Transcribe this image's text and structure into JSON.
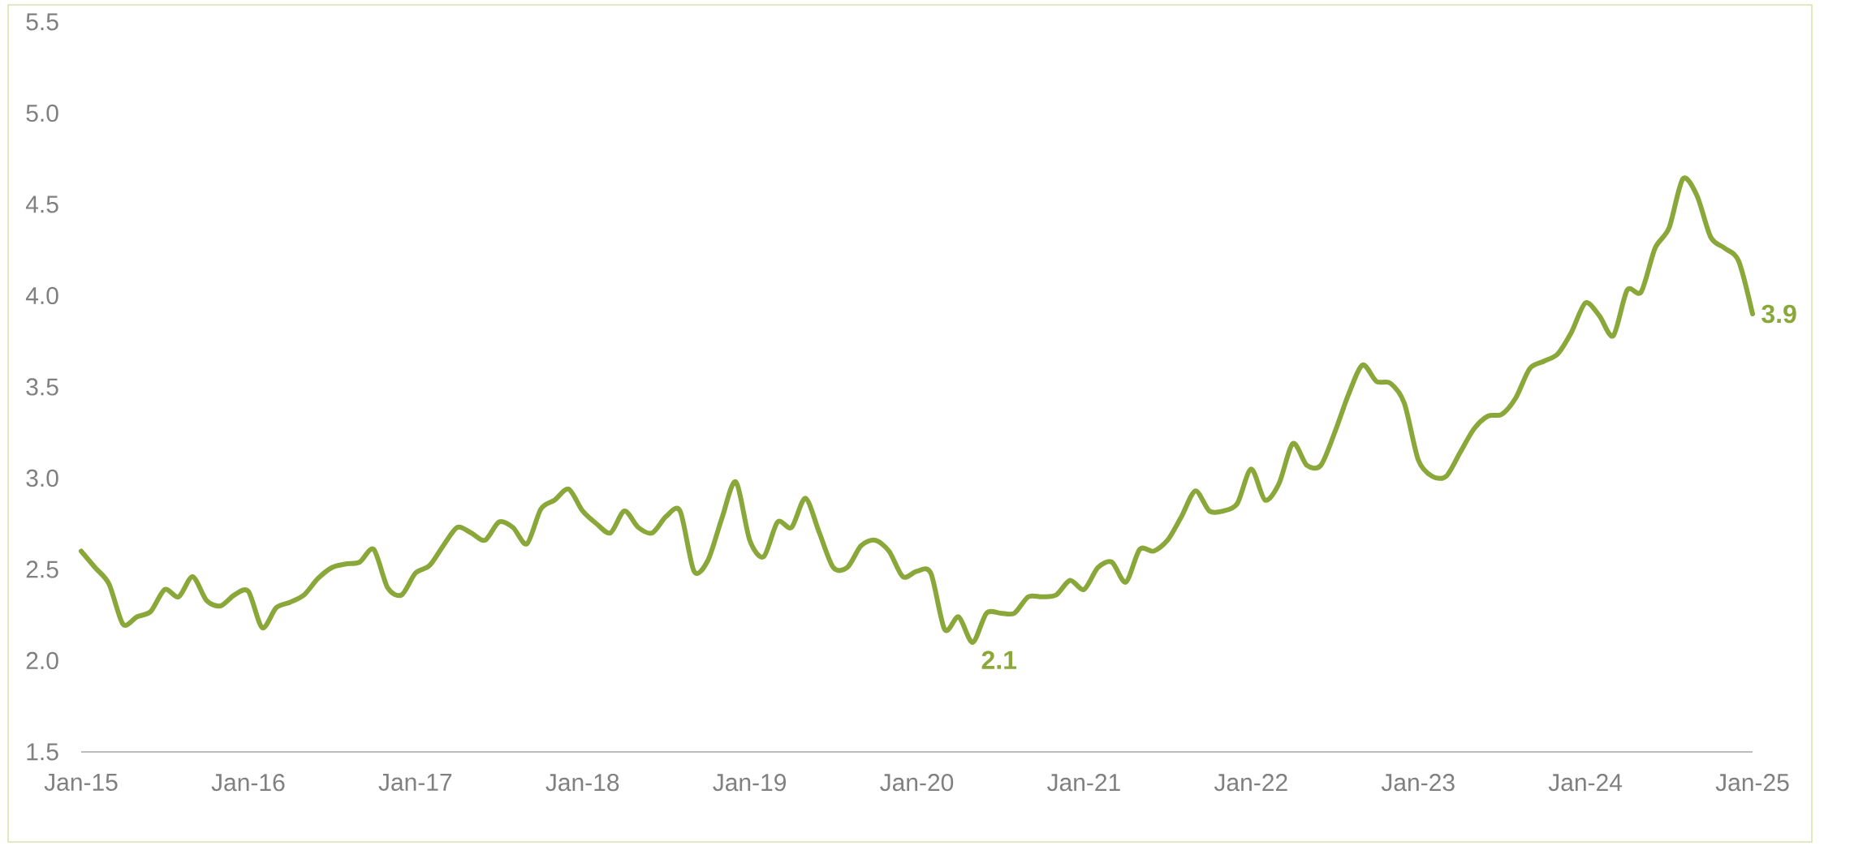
{
  "chart_data": {
    "type": "line",
    "x": [
      "2015-01",
      "2015-02",
      "2015-03",
      "2015-04",
      "2015-05",
      "2015-06",
      "2015-07",
      "2015-08",
      "2015-09",
      "2015-10",
      "2015-11",
      "2015-12",
      "2016-01",
      "2016-02",
      "2016-03",
      "2016-04",
      "2016-05",
      "2016-06",
      "2016-07",
      "2016-08",
      "2016-09",
      "2016-10",
      "2016-11",
      "2016-12",
      "2017-01",
      "2017-02",
      "2017-03",
      "2017-04",
      "2017-05",
      "2017-06",
      "2017-07",
      "2017-08",
      "2017-09",
      "2017-10",
      "2017-11",
      "2017-12",
      "2018-01",
      "2018-02",
      "2018-03",
      "2018-04",
      "2018-05",
      "2018-06",
      "2018-07",
      "2018-08",
      "2018-09",
      "2018-10",
      "2018-11",
      "2018-12",
      "2019-01",
      "2019-02",
      "2019-03",
      "2019-04",
      "2019-05",
      "2019-06",
      "2019-07",
      "2019-08",
      "2019-09",
      "2019-10",
      "2019-11",
      "2019-12",
      "2020-01",
      "2020-02",
      "2020-03",
      "2020-04",
      "2020-05",
      "2020-06",
      "2020-07",
      "2020-08",
      "2020-09",
      "2020-10",
      "2020-11",
      "2020-12",
      "2021-01",
      "2021-02",
      "2021-03",
      "2021-04",
      "2021-05",
      "2021-06",
      "2021-07",
      "2021-08",
      "2021-09",
      "2021-10",
      "2021-11",
      "2021-12",
      "2022-01",
      "2022-02",
      "2022-03",
      "2022-04",
      "2022-05",
      "2022-06",
      "2022-07",
      "2022-08",
      "2022-09",
      "2022-10",
      "2022-11",
      "2022-12",
      "2023-01",
      "2023-02",
      "2023-03",
      "2023-04",
      "2023-05",
      "2023-06",
      "2023-07",
      "2023-08",
      "2023-09",
      "2023-10",
      "2023-11",
      "2023-12",
      "2024-01",
      "2024-02",
      "2024-03",
      "2024-04",
      "2024-05",
      "2024-06",
      "2024-07",
      "2024-08",
      "2024-09",
      "2024-10",
      "2024-11",
      "2024-12",
      "2025-01"
    ],
    "values": [
      2.6,
      2.51,
      2.42,
      2.2,
      2.24,
      2.27,
      2.39,
      2.35,
      2.46,
      2.33,
      2.3,
      2.36,
      2.38,
      2.18,
      2.29,
      2.32,
      2.36,
      2.45,
      2.51,
      2.53,
      2.54,
      2.61,
      2.4,
      2.36,
      2.48,
      2.52,
      2.63,
      2.73,
      2.7,
      2.66,
      2.76,
      2.73,
      2.64,
      2.83,
      2.88,
      2.94,
      2.82,
      2.75,
      2.7,
      2.82,
      2.73,
      2.7,
      2.79,
      2.82,
      2.49,
      2.55,
      2.78,
      2.98,
      2.66,
      2.57,
      2.76,
      2.73,
      2.89,
      2.7,
      2.51,
      2.51,
      2.63,
      2.66,
      2.6,
      2.46,
      2.49,
      2.48,
      2.17,
      2.24,
      2.1,
      2.26,
      2.26,
      2.26,
      2.35,
      2.35,
      2.36,
      2.44,
      2.39,
      2.51,
      2.54,
      2.43,
      2.61,
      2.6,
      2.66,
      2.79,
      2.93,
      2.82,
      2.82,
      2.86,
      3.05,
      2.88,
      2.97,
      3.19,
      3.07,
      3.07,
      3.25,
      3.46,
      3.62,
      3.53,
      3.52,
      3.41,
      3.1,
      3.01,
      3.01,
      3.14,
      3.27,
      3.34,
      3.35,
      3.44,
      3.6,
      3.64,
      3.68,
      3.8,
      3.96,
      3.89,
      3.78,
      4.03,
      4.02,
      4.26,
      4.37,
      4.64,
      4.55,
      4.32,
      4.26,
      4.19,
      3.9
    ],
    "value_labels": [
      null,
      null,
      null,
      null,
      null,
      null,
      null,
      null,
      null,
      null,
      null,
      null,
      null,
      null,
      null,
      null,
      null,
      null,
      null,
      null,
      null,
      null,
      null,
      null,
      null,
      null,
      null,
      null,
      null,
      null,
      null,
      null,
      null,
      null,
      null,
      null,
      null,
      null,
      null,
      null,
      null,
      null,
      null,
      null,
      null,
      null,
      null,
      null,
      null,
      null,
      null,
      null,
      null,
      null,
      null,
      null,
      null,
      null,
      null,
      null,
      null,
      null,
      null,
      null,
      "2.1",
      null,
      null,
      null,
      null,
      null,
      null,
      null,
      null,
      null,
      null,
      null,
      null,
      null,
      null,
      null,
      null,
      null,
      null,
      null,
      null,
      null,
      null,
      null,
      null,
      null,
      null,
      null,
      null,
      null,
      null,
      null,
      null,
      null,
      null,
      null,
      null,
      null,
      null,
      null,
      null,
      null,
      null,
      null,
      null,
      null,
      null,
      null,
      null,
      null,
      null,
      null,
      null,
      null,
      null,
      null,
      "3.9"
    ],
    "color": "#8aa83a",
    "xlim": [
      "2015-01",
      "2025-01"
    ],
    "xticks": [
      {
        "value": "2015-01",
        "label": "Jan-15"
      },
      {
        "value": "2016-01",
        "label": "Jan-16"
      },
      {
        "value": "2017-01",
        "label": "Jan-17"
      },
      {
        "value": "2018-01",
        "label": "Jan-18"
      },
      {
        "value": "2019-01",
        "label": "Jan-19"
      },
      {
        "value": "2020-01",
        "label": "Jan-20"
      },
      {
        "value": "2021-01",
        "label": "Jan-21"
      },
      {
        "value": "2022-01",
        "label": "Jan-22"
      },
      {
        "value": "2023-01",
        "label": "Jan-23"
      },
      {
        "value": "2024-01",
        "label": "Jan-24"
      },
      {
        "value": "2025-01",
        "label": "Jan-25"
      }
    ],
    "ylim": [
      1.5,
      5.5
    ],
    "yticks": [
      {
        "value": 1.5,
        "label": "1.5"
      },
      {
        "value": 2,
        "label": "2.0"
      },
      {
        "value": 2.5,
        "label": "2.5"
      },
      {
        "value": 3,
        "label": "3.0"
      },
      {
        "value": 3.5,
        "label": "3.5"
      },
      {
        "value": 4,
        "label": "4.0"
      },
      {
        "value": 4.5,
        "label": "4.5"
      },
      {
        "value": 5,
        "label": "5.0"
      },
      {
        "value": 5.5,
        "label": "5.5"
      }
    ]
  }
}
